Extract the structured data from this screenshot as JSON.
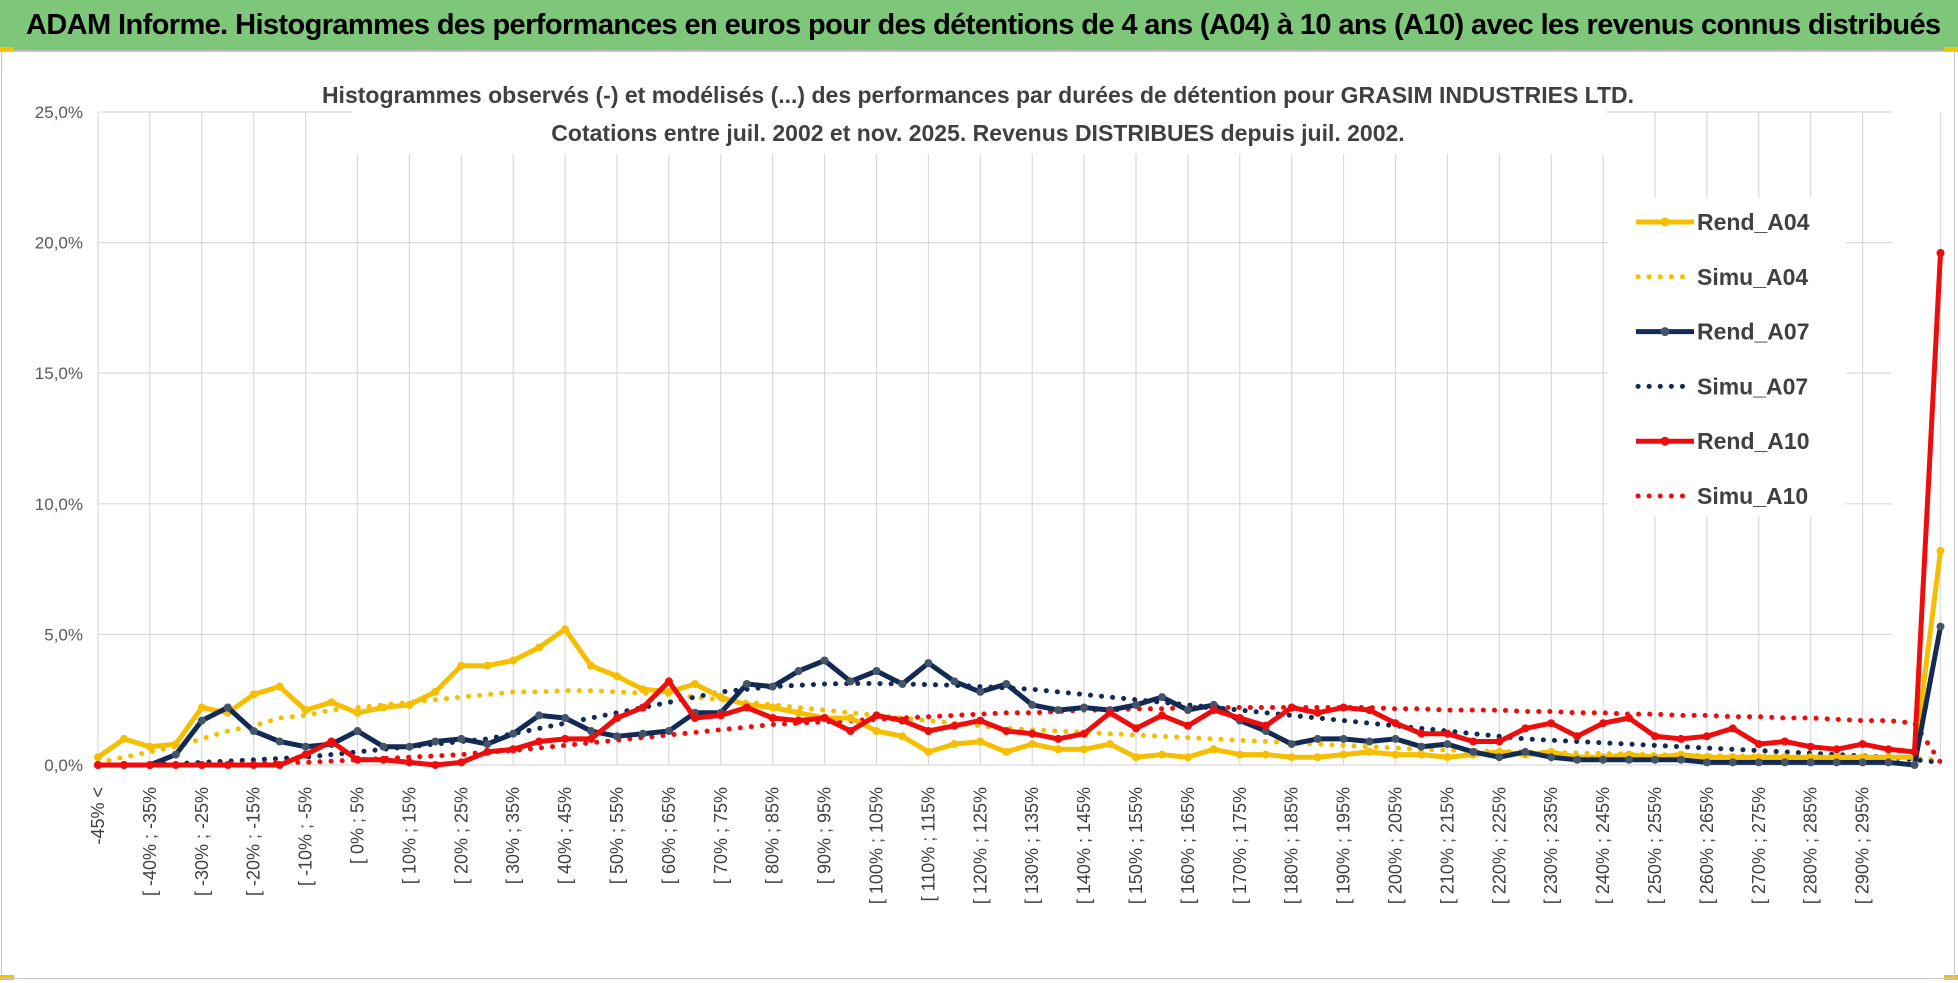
{
  "header": {
    "title": "ADAM Informe. Histogrammes des performances en euros pour des détentions de 4 ans (A04) à 10 ans (A10) avec les revenus connus distribués"
  },
  "colors": {
    "banner": "#7dc67a",
    "rend_a04": "#f5be00",
    "rend_a07": "#132a55",
    "rend_a10": "#ee0d0d",
    "marker_a07": "#44546a",
    "grid": "#d9d9d9"
  },
  "chart_data": {
    "type": "line",
    "title_lines": [
      "Histogrammes observés (-) et modélisés (...) des performances par durées de détention pour GRASIM INDUSTRIES LTD.",
      "Cotations entre juil. 2002 et nov. 2025. Revenus DISTRIBUES depuis juil. 2002."
    ],
    "ylim": [
      0,
      25
    ],
    "y_ticks": [
      "0,0%",
      "5,0%",
      "10,0%",
      "15,0%",
      "20,0%",
      "25,0%"
    ],
    "y_tick_values": [
      0,
      5,
      10,
      15,
      20,
      25
    ],
    "grid": true,
    "legend_position": "right",
    "x_labels": [
      "-45% <",
      "[ -40% ; -35%",
      "[ -30% ; -25%",
      "[ -20% ; -15%",
      "[ -10% ; -5%",
      "[ 0% ; 5%",
      "[ 10% ; 15%",
      "[ 20% ; 25%",
      "[ 30% ; 35%",
      "[ 40% ; 45%",
      "[ 50% ; 55%",
      "[ 60% ; 65%",
      "[ 70% ; 75%",
      "[ 80% ; 85%",
      "[ 90% ; 95%",
      "[ 100% ; 105%",
      "[ 110% ; 115%",
      "[ 120% ; 125%",
      "[ 130% ; 135%",
      "[ 140% ; 145%",
      "[ 150% ; 155%",
      "[ 160% ; 165%",
      "[ 170% ; 175%",
      "[ 180% ; 185%",
      "[ 190% ; 195%",
      "[ 200% ; 205%",
      "[ 210% ; 215%",
      "[ 220% ; 225%",
      "[ 230% ; 235%",
      "[ 240% ; 245%",
      "[ 250% ; 255%",
      "[ 260% ; 265%",
      "[ 270% ; 275%",
      "[ 280% ; 285%",
      "[ 290% ; 295%"
    ],
    "series": [
      {
        "name": "Rend_A04",
        "style": "solid",
        "color": "#f5be00",
        "marker_color": "#f5be00",
        "values": [
          0.3,
          1.0,
          0.7,
          0.8,
          2.2,
          2.0,
          2.7,
          3.0,
          2.1,
          2.4,
          2.0,
          2.2,
          2.3,
          2.8,
          3.8,
          3.8,
          4.0,
          4.5,
          5.2,
          3.8,
          3.4,
          2.9,
          2.8,
          3.1,
          2.6,
          2.3,
          2.2,
          2.0,
          1.8,
          1.8,
          1.3,
          1.1,
          0.5,
          0.8,
          0.9,
          0.5,
          0.8,
          0.6,
          0.6,
          0.8,
          0.3,
          0.4,
          0.3,
          0.6,
          0.4,
          0.4,
          0.3,
          0.3,
          0.4,
          0.5,
          0.4,
          0.4,
          0.3,
          0.4,
          0.5,
          0.4,
          0.5,
          0.3,
          0.3,
          0.4,
          0.3,
          0.4,
          0.3,
          0.3,
          0.3,
          0.3,
          0.3,
          0.3,
          0.3,
          0.3,
          0.3,
          8.2
        ]
      },
      {
        "name": "Simu_A04",
        "style": "dotted",
        "color": "#f5be00",
        "values": [
          0.1,
          0.3,
          0.5,
          0.7,
          1.0,
          1.3,
          1.5,
          1.8,
          1.9,
          2.1,
          2.2,
          2.3,
          2.4,
          2.5,
          2.6,
          2.7,
          2.8,
          2.8,
          2.85,
          2.85,
          2.8,
          2.75,
          2.7,
          2.6,
          2.5,
          2.4,
          2.3,
          2.2,
          2.1,
          2.0,
          1.9,
          1.8,
          1.7,
          1.6,
          1.5,
          1.4,
          1.35,
          1.3,
          1.25,
          1.2,
          1.15,
          1.1,
          1.05,
          1.0,
          0.95,
          0.9,
          0.85,
          0.8,
          0.75,
          0.7,
          0.65,
          0.6,
          0.58,
          0.55,
          0.52,
          0.5,
          0.48,
          0.46,
          0.44,
          0.42,
          0.4,
          0.38,
          0.36,
          0.35,
          0.34,
          0.33,
          0.32,
          0.3,
          0.3,
          0.28,
          0.25,
          0.2
        ]
      },
      {
        "name": "Rend_A07",
        "style": "solid",
        "color": "#132a55",
        "marker_color": "#44546a",
        "values": [
          0.0,
          0.0,
          0.0,
          0.4,
          1.7,
          2.2,
          1.3,
          0.9,
          0.7,
          0.8,
          1.3,
          0.7,
          0.7,
          0.9,
          1.0,
          0.8,
          1.2,
          1.9,
          1.8,
          1.3,
          1.1,
          1.2,
          1.3,
          2.0,
          2.0,
          3.1,
          3.0,
          3.6,
          4.0,
          3.2,
          3.6,
          3.1,
          3.9,
          3.2,
          2.8,
          3.1,
          2.3,
          2.1,
          2.2,
          2.1,
          2.3,
          2.6,
          2.1,
          2.3,
          1.7,
          1.3,
          0.8,
          1.0,
          1.0,
          0.9,
          1.0,
          0.7,
          0.8,
          0.5,
          0.3,
          0.5,
          0.3,
          0.2,
          0.2,
          0.2,
          0.2,
          0.2,
          0.1,
          0.1,
          0.1,
          0.1,
          0.1,
          0.1,
          0.1,
          0.1,
          0.0,
          5.3
        ]
      },
      {
        "name": "Simu_A07",
        "style": "dotted",
        "color": "#132a55",
        "values": [
          0.0,
          0.0,
          0.0,
          0.05,
          0.1,
          0.15,
          0.2,
          0.25,
          0.3,
          0.4,
          0.5,
          0.6,
          0.7,
          0.8,
          0.9,
          1.0,
          1.2,
          1.4,
          1.6,
          1.8,
          2.0,
          2.2,
          2.4,
          2.6,
          2.8,
          2.9,
          3.0,
          3.05,
          3.1,
          3.12,
          3.12,
          3.1,
          3.08,
          3.05,
          3.0,
          2.95,
          2.9,
          2.8,
          2.7,
          2.6,
          2.5,
          2.4,
          2.3,
          2.2,
          2.1,
          2.0,
          1.9,
          1.8,
          1.7,
          1.6,
          1.5,
          1.4,
          1.3,
          1.2,
          1.1,
          1.0,
          0.95,
          0.9,
          0.85,
          0.8,
          0.75,
          0.7,
          0.65,
          0.6,
          0.55,
          0.5,
          0.45,
          0.4,
          0.35,
          0.3,
          0.2,
          0.1
        ]
      },
      {
        "name": "Rend_A10",
        "style": "solid",
        "color": "#ee0d0d",
        "marker_color": "#ee0d0d",
        "values": [
          0.0,
          0.0,
          0.0,
          0.0,
          0.0,
          0.0,
          0.0,
          0.0,
          0.4,
          0.9,
          0.2,
          0.2,
          0.1,
          0.0,
          0.1,
          0.5,
          0.6,
          0.9,
          1.0,
          1.0,
          1.8,
          2.2,
          3.2,
          1.8,
          1.9,
          2.2,
          1.8,
          1.7,
          1.8,
          1.3,
          1.9,
          1.7,
          1.3,
          1.5,
          1.7,
          1.3,
          1.2,
          1.0,
          1.2,
          2.0,
          1.4,
          1.9,
          1.5,
          2.1,
          1.8,
          1.5,
          2.2,
          2.0,
          2.2,
          2.1,
          1.6,
          1.2,
          1.2,
          0.9,
          0.9,
          1.4,
          1.6,
          1.1,
          1.6,
          1.8,
          1.1,
          1.0,
          1.1,
          1.4,
          0.8,
          0.9,
          0.7,
          0.6,
          0.8,
          0.6,
          0.5,
          19.6
        ]
      },
      {
        "name": "Simu_A10",
        "style": "dotted",
        "color": "#ee0d0d",
        "values": [
          0.0,
          0.0,
          0.0,
          0.0,
          0.0,
          0.05,
          0.05,
          0.1,
          0.1,
          0.15,
          0.2,
          0.25,
          0.3,
          0.35,
          0.4,
          0.5,
          0.55,
          0.65,
          0.75,
          0.85,
          0.95,
          1.05,
          1.15,
          1.25,
          1.35,
          1.45,
          1.55,
          1.6,
          1.65,
          1.7,
          1.75,
          1.8,
          1.85,
          1.9,
          1.95,
          2.0,
          2.0,
          2.05,
          2.1,
          2.1,
          2.15,
          2.15,
          2.2,
          2.2,
          2.2,
          2.2,
          2.2,
          2.2,
          2.2,
          2.2,
          2.15,
          2.15,
          2.1,
          2.1,
          2.1,
          2.05,
          2.05,
          2.0,
          2.0,
          1.95,
          1.95,
          1.9,
          1.9,
          1.85,
          1.85,
          1.8,
          1.8,
          1.75,
          1.7,
          1.7,
          1.6,
          0.1
        ]
      }
    ]
  }
}
